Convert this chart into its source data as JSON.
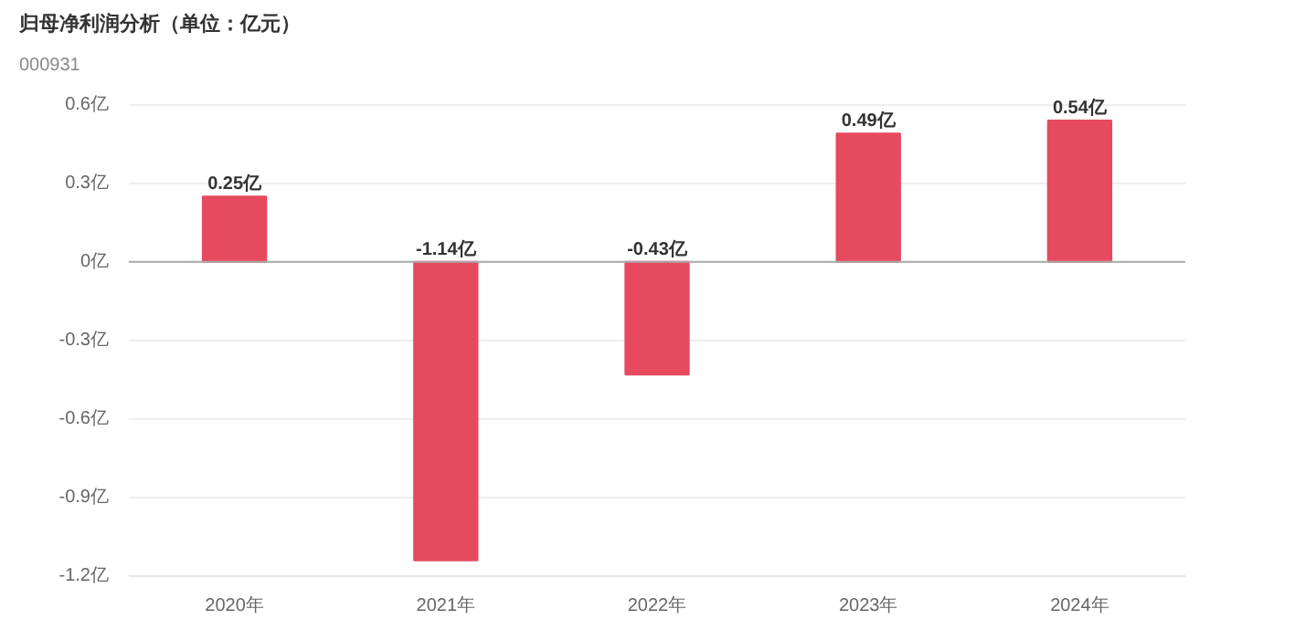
{
  "chart_data": {
    "type": "bar",
    "title": "归母净利润分析（单位：亿元）",
    "subtitle": "000931",
    "categories": [
      "2020年",
      "2021年",
      "2022年",
      "2023年",
      "2024年"
    ],
    "values": [
      0.25,
      -1.14,
      -0.43,
      0.49,
      0.54
    ],
    "color": "#e64a5e",
    "value_labels": [
      "0.25亿",
      "-1.14亿",
      "-0.43亿",
      "0.49亿",
      "0.54亿"
    ],
    "ylim": [
      -1.2,
      0.6
    ],
    "yticks": [
      {
        "value": 0.6,
        "label": "0.6亿"
      },
      {
        "value": 0.3,
        "label": "0.3亿"
      },
      {
        "value": 0,
        "label": "0亿"
      },
      {
        "value": -0.3,
        "label": "-0.3亿"
      },
      {
        "value": -0.6,
        "label": "-0.6亿"
      },
      {
        "value": -0.9,
        "label": "-0.9亿"
      },
      {
        "value": -1.2,
        "label": "-1.2亿"
      }
    ],
    "grid": "y",
    "legend": false
  }
}
